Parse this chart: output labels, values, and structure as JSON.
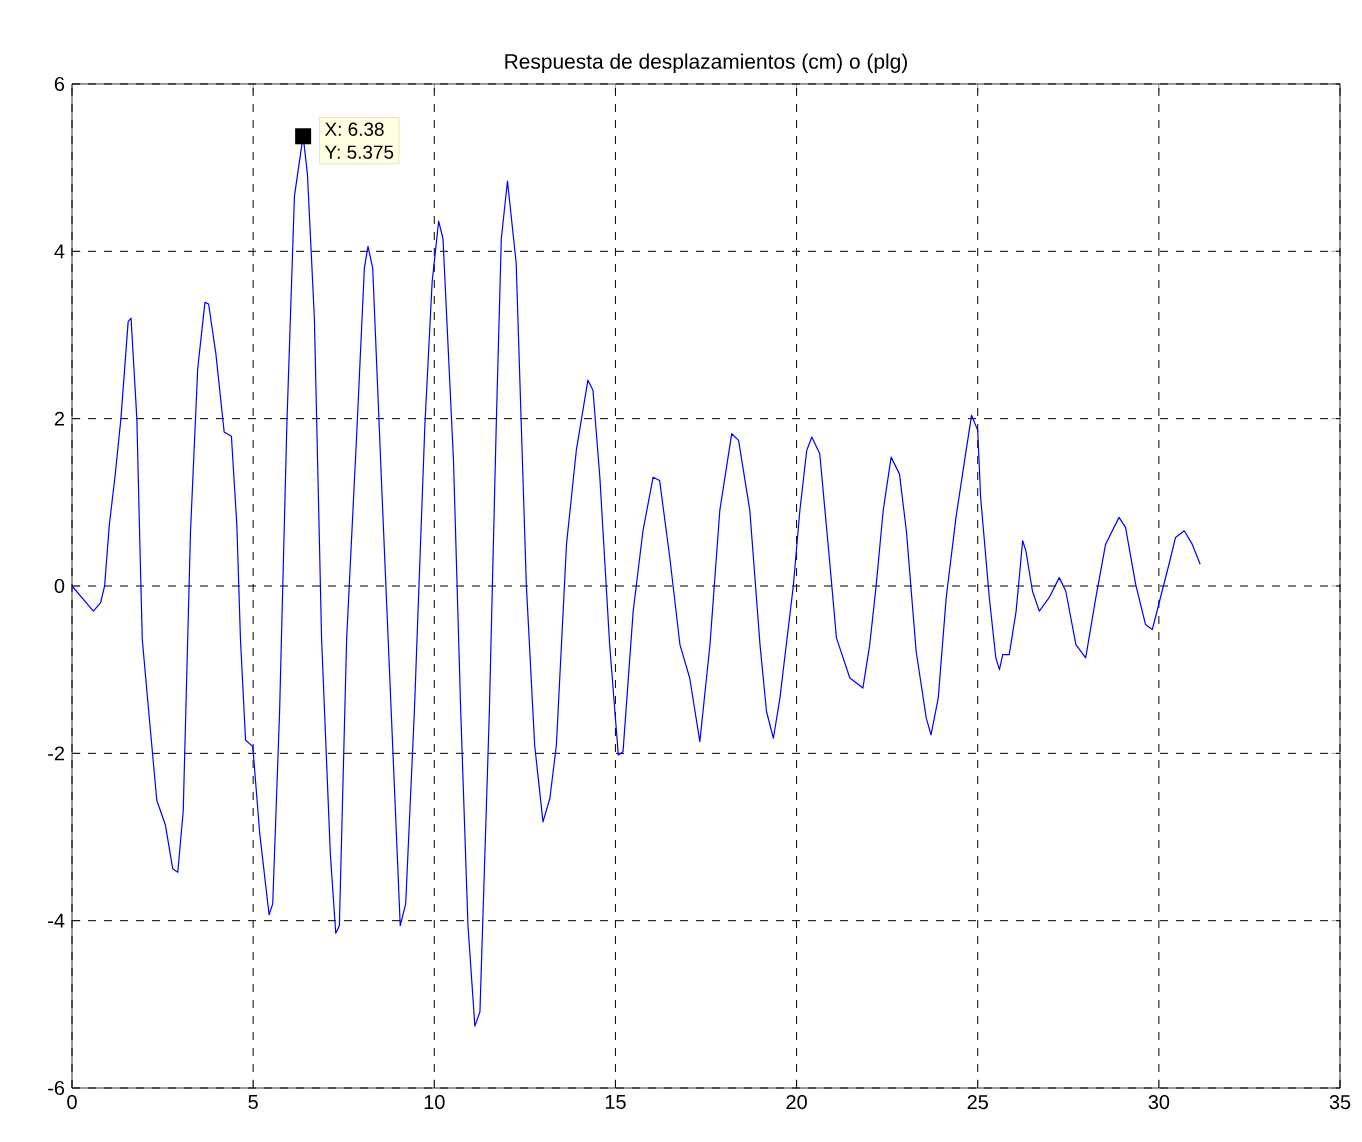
{
  "chart_data": {
    "type": "line",
    "title": "Respuesta de desplazamientos (cm) o (plg)",
    "xlim": [
      0,
      35
    ],
    "ylim": [
      -6,
      6
    ],
    "xticks": [
      0,
      5,
      10,
      15,
      20,
      25,
      30,
      35
    ],
    "yticks": [
      -6,
      -4,
      -2,
      0,
      2,
      4,
      6
    ],
    "grid": true,
    "marker": "none",
    "line_style": "solid",
    "annotations": [
      {
        "text": "X: 6.38",
        "x": 6.38,
        "y": 5.375
      },
      {
        "text": "Y: 5.375",
        "x": 6.38,
        "y": 5.375
      }
    ],
    "series": [
      {
        "color": "#0000ff",
        "x": [
          0,
          0.59,
          0.79,
          0.9,
          1.03,
          1.19,
          1.35,
          1.55,
          1.63,
          1.79,
          1.88,
          1.94,
          2.08,
          2.34,
          2.58,
          2.78,
          2.92,
          3.07,
          3.27,
          3.47,
          3.67,
          3.77,
          3.97,
          4.2,
          4.4,
          4.55,
          4.65,
          4.79,
          4.99,
          5.18,
          5.44,
          5.54,
          5.73,
          5.93,
          6.14,
          6.38,
          6.5,
          6.69,
          6.89,
          7.13,
          7.28,
          7.38,
          7.58,
          7.87,
          8.07,
          8.17,
          8.3,
          8.56,
          8.86,
          9.06,
          9.21,
          9.45,
          9.74,
          9.94,
          10.12,
          10.24,
          10.53,
          10.73,
          10.93,
          11.12,
          11.26,
          11.52,
          11.71,
          11.85,
          12.02,
          12.26,
          12.54,
          12.77,
          13.0,
          13.19,
          13.37,
          13.65,
          13.92,
          14.24,
          14.38,
          14.57,
          14.84,
          15.08,
          15.21,
          15.49,
          15.76,
          16.04,
          16.22,
          16.5,
          16.78,
          17.05,
          17.33,
          17.61,
          17.88,
          18.21,
          18.4,
          18.71,
          18.99,
          19.17,
          19.36,
          19.54,
          19.91,
          20.09,
          20.28,
          20.42,
          20.64,
          20.92,
          21.1,
          21.47,
          21.83,
          22.02,
          22.2,
          22.39,
          22.61,
          22.84,
          23.03,
          23.3,
          23.58,
          23.71,
          23.91,
          24.13,
          24.4,
          24.68,
          24.83,
          25.0,
          25.08,
          25.32,
          25.5,
          25.6,
          25.69,
          25.87,
          26.06,
          26.24,
          26.33,
          26.51,
          26.7,
          26.97,
          27.25,
          27.43,
          27.71,
          27.98,
          28.26,
          28.53,
          28.9,
          29.08,
          29.36,
          29.63,
          29.82,
          30.09,
          30.28,
          30.46,
          30.7,
          30.92,
          31.14
        ],
        "values": [
          0,
          -0.3,
          -0.2,
          0,
          0.73,
          1.32,
          2.0,
          3.16,
          3.2,
          2.0,
          0.38,
          -0.64,
          -1.32,
          -2.56,
          -2.86,
          -3.38,
          -3.42,
          -2.69,
          0.64,
          2.6,
          3.39,
          3.37,
          2.78,
          1.84,
          1.79,
          0.73,
          -0.64,
          -1.84,
          -1.92,
          -2.95,
          -3.93,
          -3.8,
          -1.5,
          1.92,
          4.66,
          5.38,
          4.91,
          3.2,
          -0.64,
          -3.2,
          -4.15,
          -4.06,
          -0.64,
          1.92,
          3.8,
          4.06,
          3.8,
          1.07,
          -2.0,
          -4.06,
          -3.8,
          -1.5,
          1.92,
          3.63,
          4.36,
          4.15,
          1.5,
          -1.5,
          -4.06,
          -5.26,
          -5.09,
          -1.5,
          1.92,
          4.15,
          4.84,
          3.86,
          0.02,
          -1.9,
          -2.82,
          -2.54,
          -1.9,
          0.5,
          1.62,
          2.46,
          2.34,
          1.3,
          -0.7,
          -2.02,
          -1.98,
          -0.3,
          0.66,
          1.3,
          1.26,
          0.34,
          -0.7,
          -1.1,
          -1.86,
          -0.7,
          0.9,
          1.82,
          1.74,
          0.9,
          -0.7,
          -1.5,
          -1.82,
          -1.34,
          0,
          0.9,
          1.62,
          1.78,
          1.58,
          0.26,
          -0.62,
          -1.1,
          -1.22,
          -0.7,
          0.02,
          0.9,
          1.54,
          1.34,
          0.66,
          -0.78,
          -1.58,
          -1.78,
          -1.34,
          -0.14,
          0.82,
          1.62,
          2.04,
          1.86,
          1.06,
          -0.14,
          -0.86,
          -1.0,
          -0.82,
          -0.82,
          -0.3,
          0.54,
          0.42,
          -0.06,
          -0.3,
          -0.14,
          0.1,
          -0.06,
          -0.7,
          -0.86,
          -0.14,
          0.5,
          0.82,
          0.7,
          0.02,
          -0.46,
          -0.52,
          -0.06,
          0.26,
          0.58,
          0.66,
          0.5,
          0.26
        ]
      }
    ]
  }
}
